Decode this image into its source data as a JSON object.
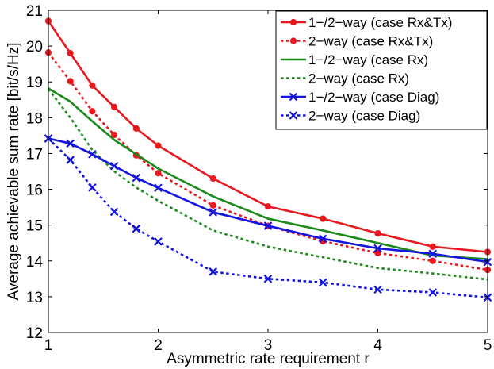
{
  "chart_data": {
    "type": "line",
    "xlabel": "Asymmetric rate requirement r",
    "ylabel": "Average achievable sum rate [bit/s/Hz]",
    "xlim": [
      1,
      5
    ],
    "ylim": [
      12,
      21
    ],
    "xticks": [
      1,
      2,
      3,
      4,
      5
    ],
    "yticks": [
      12,
      13,
      14,
      15,
      16,
      17,
      18,
      19,
      20,
      21
    ],
    "grid": false,
    "legend_position": "top-right",
    "x": [
      1,
      1.2,
      1.4,
      1.6,
      1.8,
      2,
      2.5,
      3,
      3.5,
      4,
      4.5,
      5
    ],
    "series": [
      {
        "name": "1−/2−way (case Rx&Tx)",
        "color": "#e8191e",
        "line": "solid",
        "marker": "dot",
        "values": [
          20.7,
          19.8,
          18.9,
          18.3,
          17.7,
          17.22,
          16.3,
          15.52,
          15.18,
          14.77,
          14.4,
          14.25
        ]
      },
      {
        "name": "2−way (case Rx&Tx)",
        "color": "#e8191e",
        "line": "dotted",
        "marker": "dot",
        "values": [
          19.82,
          19.02,
          18.18,
          17.52,
          16.95,
          16.45,
          15.55,
          14.98,
          14.55,
          14.22,
          14.0,
          13.75
        ]
      },
      {
        "name": "1−/2−way (case Rx)",
        "color": "#1b8a1b",
        "line": "solid",
        "marker": "none",
        "values": [
          18.82,
          18.45,
          17.9,
          17.38,
          16.98,
          16.58,
          15.8,
          15.18,
          14.85,
          14.5,
          14.15,
          14.05
        ]
      },
      {
        "name": "2−way (case Rx)",
        "color": "#1b8a1b",
        "line": "dotted",
        "marker": "none",
        "values": [
          18.8,
          18.0,
          17.1,
          16.5,
          16.05,
          15.68,
          14.85,
          14.4,
          14.1,
          13.8,
          13.65,
          13.48
        ]
      },
      {
        "name": "1−/2−way (case Diag)",
        "color": "#1414e0",
        "line": "solid",
        "marker": "x",
        "values": [
          17.42,
          17.28,
          16.98,
          16.65,
          16.32,
          16.04,
          15.36,
          14.98,
          14.62,
          14.35,
          14.2,
          13.97
        ]
      },
      {
        "name": "2−way (case Diag)",
        "color": "#1414e0",
        "line": "dotted",
        "marker": "x",
        "values": [
          17.42,
          16.82,
          16.05,
          15.37,
          14.9,
          14.54,
          13.7,
          13.5,
          13.4,
          13.2,
          13.12,
          12.98
        ]
      }
    ]
  }
}
